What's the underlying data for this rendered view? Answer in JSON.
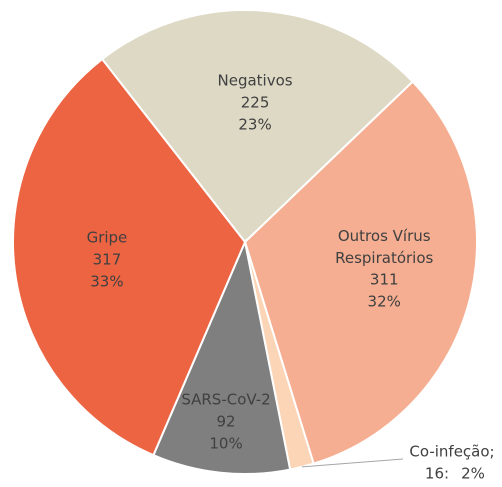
{
  "chart_data": {
    "type": "pie",
    "categories": [
      "Negativos",
      "Outros Vírus Respiratórios",
      "Co-infeção;",
      "SARS-CoV-2",
      "Gripe"
    ],
    "values": [
      225,
      311,
      16,
      92,
      317
    ],
    "value_labels": [
      "225",
      "311",
      "16:",
      "92",
      "317"
    ],
    "percent_labels": [
      "23%",
      "32%",
      "2%",
      "10%",
      "33%"
    ],
    "colors": [
      "#ddd9c4",
      "#f5ae91",
      "#fbd5b5",
      "#7f7f7f",
      "#ed6443"
    ]
  }
}
